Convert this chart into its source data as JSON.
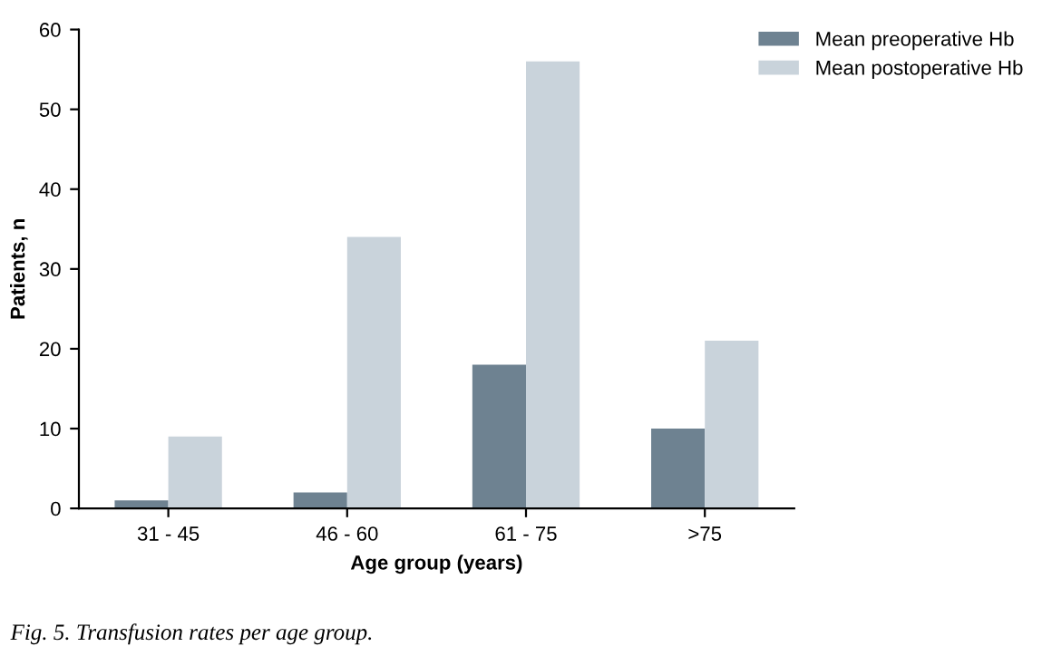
{
  "chart_data": {
    "type": "bar",
    "xlabel": "Age group (years)",
    "ylabel": "Patients, n",
    "categories": [
      "31 - 45",
      "46 - 60",
      "61 - 75",
      ">75"
    ],
    "series": [
      {
        "name": "Mean preoperative Hb",
        "color": "#6e8291",
        "values": [
          1,
          2,
          18,
          10
        ]
      },
      {
        "name": "Mean postoperative Hb",
        "color": "#c9d3db",
        "values": [
          9,
          34,
          56,
          21
        ]
      }
    ],
    "ylim": [
      0,
      60
    ],
    "yticks": [
      0,
      10,
      20,
      30,
      40,
      50,
      60
    ],
    "grid": false,
    "legend": "top right",
    "annotations": [
      "Fig. 5. Transfusion rates per age group."
    ]
  }
}
